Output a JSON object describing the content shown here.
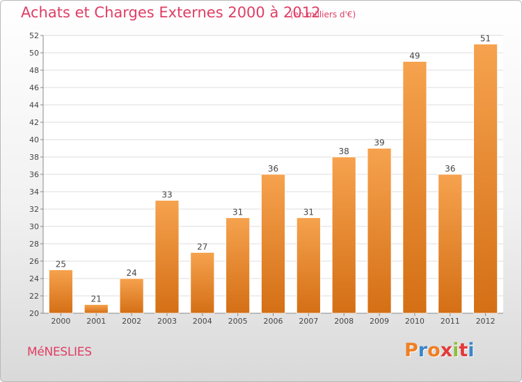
{
  "chart_data": {
    "type": "bar",
    "title": "Achats et Charges Externes 2000 à 2012",
    "subtitle": "(en milliers d'€)",
    "categories": [
      "2000",
      "2001",
      "2002",
      "2003",
      "2004",
      "2005",
      "2006",
      "2007",
      "2008",
      "2009",
      "2010",
      "2011",
      "2012"
    ],
    "values": [
      25,
      21,
      24,
      33,
      27,
      31,
      36,
      31,
      38,
      39,
      49,
      36,
      51
    ],
    "ylim": [
      20,
      52
    ],
    "yticks": [
      20,
      22,
      24,
      26,
      28,
      30,
      32,
      34,
      36,
      38,
      40,
      42,
      44,
      46,
      48,
      50,
      52
    ],
    "grid": true,
    "bar_color": "#f4a04c"
  },
  "footer": {
    "town": "MéNESLIES",
    "logo": {
      "letters": [
        "P",
        "r",
        "o",
        "x",
        "i",
        "t",
        "i"
      ],
      "colors": [
        "#f07f24",
        "#3a86c9",
        "#f07f24",
        "#e23a3a",
        "#8dbf3f",
        "#e23a3a",
        "#3a86c9"
      ]
    }
  }
}
